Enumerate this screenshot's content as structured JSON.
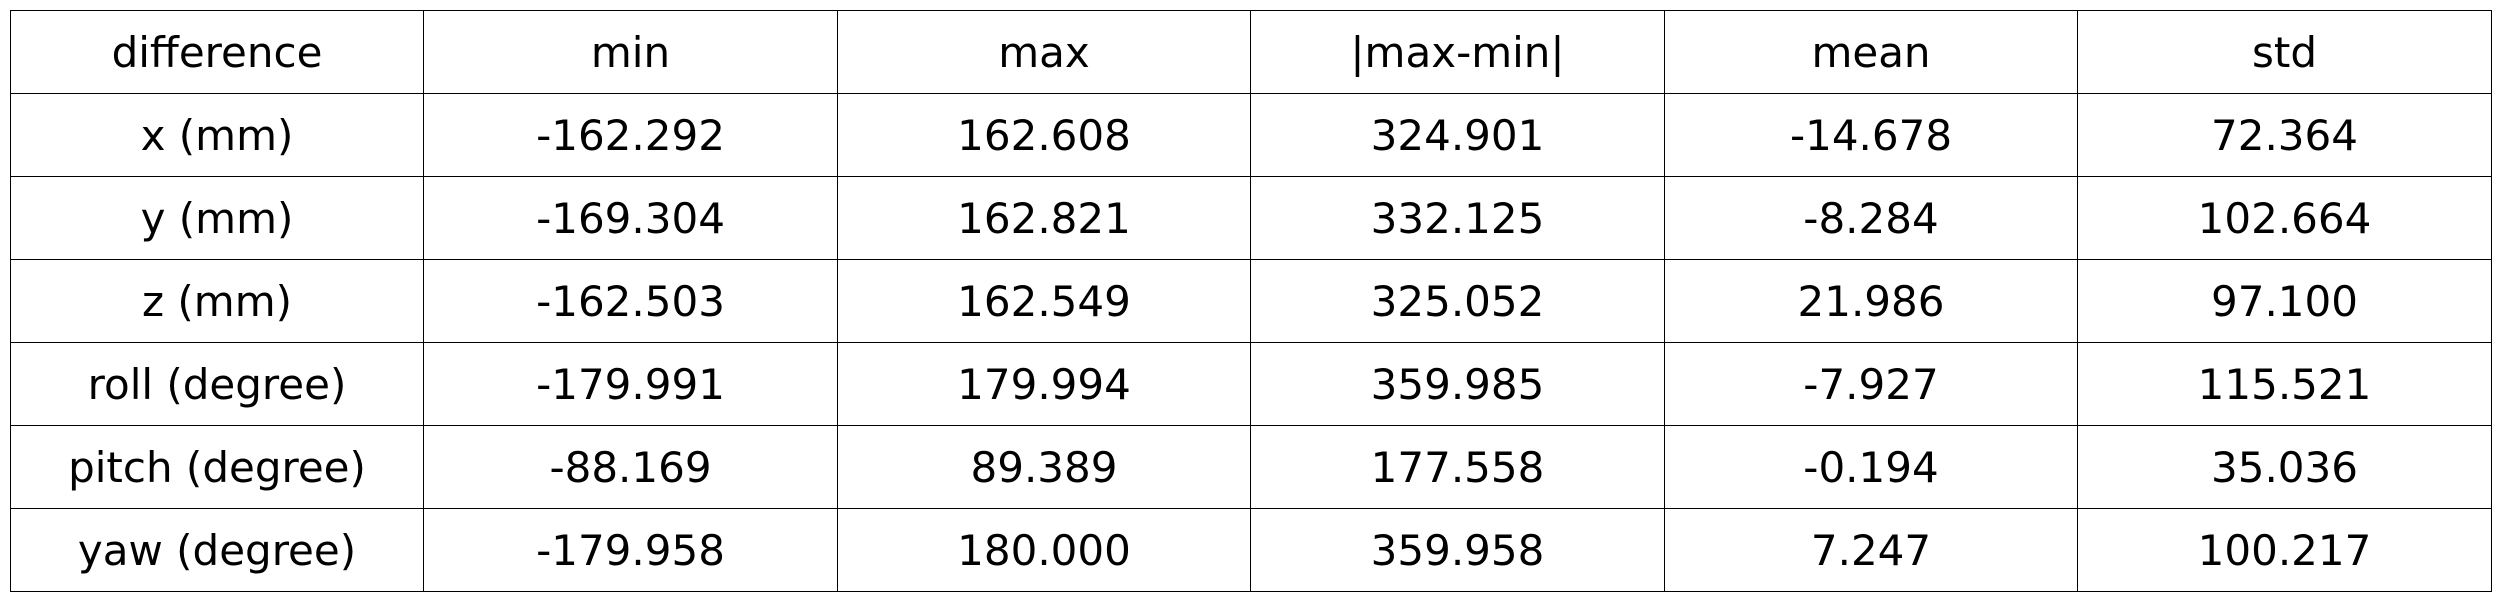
{
  "chart_data": {
    "type": "table",
    "columns": [
      "difference",
      "min",
      "max",
      "|max-min|",
      "mean",
      "std"
    ],
    "rows": [
      [
        "x (mm)",
        "-162.292",
        "162.608",
        "324.901",
        "-14.678",
        "72.364"
      ],
      [
        "y (mm)",
        "-169.304",
        "162.821",
        "332.125",
        "-8.284",
        "102.664"
      ],
      [
        "z (mm)",
        "-162.503",
        "162.549",
        "325.052",
        "21.986",
        "97.100"
      ],
      [
        "roll (degree)",
        "-179.991",
        "179.994",
        "359.985",
        "-7.927",
        "115.521"
      ],
      [
        "pitch (degree)",
        "-88.169",
        "89.389",
        "177.558",
        "-0.194",
        "35.036"
      ],
      [
        "yaw (degree)",
        "-179.958",
        "180.000",
        "359.958",
        "7.247",
        "100.217"
      ]
    ]
  }
}
